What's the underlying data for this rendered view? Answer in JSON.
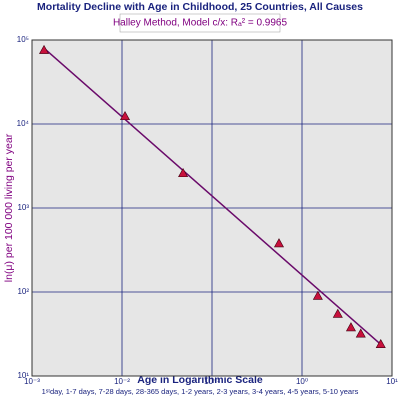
{
  "chart_data": {
    "type": "scatter",
    "title": "Mortality Decline with Age in Childhood, 25 Countries, All Causes",
    "subtitle": "Halley Method, Model c/x: Rₐ² = 0.9965",
    "x_label": "Age in Logarithmic Scale",
    "y_label": "ln(μ) per 100 000 living per year",
    "note": "1ˢᵗday, 1-7 days, 7-28 days, 28-365 days, 1-2 years, 2-3 years, 3-4 years, 4-5 years, 5-10 years",
    "x": [
      0.00136,
      0.0108,
      0.0477,
      0.555,
      1.5,
      2.5,
      3.5,
      4.5,
      7.5
    ],
    "values": [
      76000,
      12400,
      2600,
      380,
      90,
      55,
      38,
      32,
      24
    ],
    "color": "#c8103c",
    "fit": {
      "x": [
        0.00136,
        8.15
      ],
      "values": [
        80000,
        22
      ],
      "color": "#6a0a6a"
    },
    "log_x": true,
    "log_y": true,
    "grid": true,
    "xlim": [
      0.001,
      10
    ],
    "ylim": [
      10,
      100000
    ],
    "xticks": [
      {
        "value": 0.001,
        "label": "10⁻³"
      },
      {
        "value": 0.01,
        "label": "10⁻²"
      },
      {
        "value": 0.1,
        "label": "10⁻¹"
      },
      {
        "value": 1,
        "label": "10⁰"
      },
      {
        "value": 10,
        "label": "10¹"
      }
    ],
    "yticks": [
      {
        "value": 10,
        "label": "10¹"
      },
      {
        "value": 100,
        "label": "10²"
      },
      {
        "value": 1000,
        "label": "10³"
      },
      {
        "value": 10000,
        "label": "10⁴"
      },
      {
        "value": 100000,
        "label": "10⁵"
      }
    ]
  }
}
